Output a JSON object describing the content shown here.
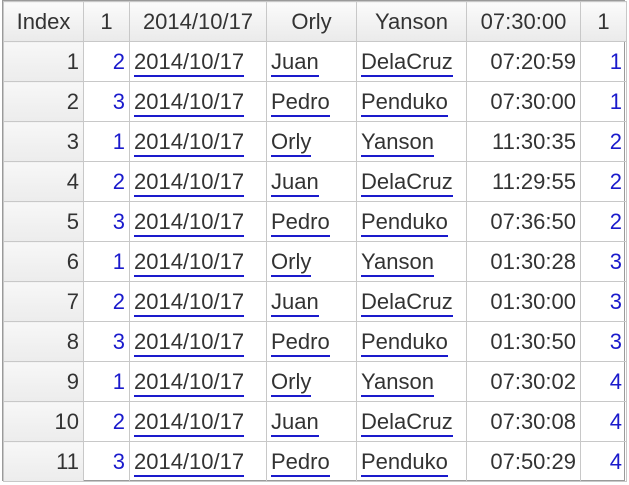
{
  "table": {
    "columns": [
      "Index",
      "1",
      "2014/10/17",
      "Orly",
      "Yanson",
      "07:30:00",
      "1"
    ],
    "rows": [
      {
        "index": "1",
        "a": "2",
        "date": "2014/10/17",
        "first": "Juan",
        "last": "DelaCruz",
        "time": "07:20:59",
        "b": "1"
      },
      {
        "index": "2",
        "a": "3",
        "date": "2014/10/17",
        "first": "Pedro",
        "last": "Penduko",
        "time": "07:30:00",
        "b": "1"
      },
      {
        "index": "3",
        "a": "1",
        "date": "2014/10/17",
        "first": "Orly",
        "last": "Yanson",
        "time": "11:30:35",
        "b": "2"
      },
      {
        "index": "4",
        "a": "2",
        "date": "2014/10/17",
        "first": "Juan",
        "last": "DelaCruz",
        "time": "11:29:55",
        "b": "2"
      },
      {
        "index": "5",
        "a": "3",
        "date": "2014/10/17",
        "first": "Pedro",
        "last": "Penduko",
        "time": "07:36:50",
        "b": "2"
      },
      {
        "index": "6",
        "a": "1",
        "date": "2014/10/17",
        "first": "Orly",
        "last": "Yanson",
        "time": "01:30:28",
        "b": "3"
      },
      {
        "index": "7",
        "a": "2",
        "date": "2014/10/17",
        "first": "Juan",
        "last": "DelaCruz",
        "time": "01:30:00",
        "b": "3"
      },
      {
        "index": "8",
        "a": "3",
        "date": "2014/10/17",
        "first": "Pedro",
        "last": "Penduko",
        "time": "01:30:50",
        "b": "3"
      },
      {
        "index": "9",
        "a": "1",
        "date": "2014/10/17",
        "first": "Orly",
        "last": "Yanson",
        "time": "07:30:02",
        "b": "4"
      },
      {
        "index": "10",
        "a": "2",
        "date": "2014/10/17",
        "first": "Juan",
        "last": "DelaCruz",
        "time": "07:30:08",
        "b": "4"
      },
      {
        "index": "11",
        "a": "3",
        "date": "2014/10/17",
        "first": "Pedro",
        "last": "Penduko",
        "time": "07:50:29",
        "b": "4"
      }
    ]
  }
}
